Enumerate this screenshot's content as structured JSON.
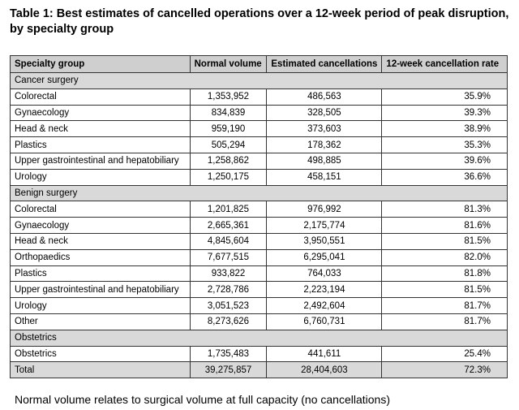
{
  "title": "Table 1: Best estimates of cancelled operations over a 12-week period of peak disruption, by specialty group",
  "table": {
    "columns": [
      "Specialty group",
      "Normal volume",
      "Estimated cancellations",
      "12-week cancellation rate"
    ],
    "sections": [
      {
        "title": "Cancer surgery",
        "rows": [
          [
            "Colorectal",
            "1,353,952",
            "486,563",
            "35.9%"
          ],
          [
            "Gynaecology",
            "834,839",
            "328,505",
            "39.3%"
          ],
          [
            "Head & neck",
            "959,190",
            "373,603",
            "38.9%"
          ],
          [
            "Plastics",
            "505,294",
            "178,362",
            "35.3%"
          ],
          [
            "Upper gastrointestinal and hepatobiliary",
            "1,258,862",
            "498,885",
            "39.6%"
          ],
          [
            "Urology",
            "1,250,175",
            "458,151",
            "36.6%"
          ]
        ]
      },
      {
        "title": "Benign surgery",
        "rows": [
          [
            "Colorectal",
            "1,201,825",
            "976,992",
            "81.3%"
          ],
          [
            "Gynaecology",
            "2,665,361",
            "2,175,774",
            "81.6%"
          ],
          [
            "Head & neck",
            "4,845,604",
            "3,950,551",
            "81.5%"
          ],
          [
            "Orthopaedics",
            "7,677,515",
            "6,295,041",
            "82.0%"
          ],
          [
            "Plastics",
            "933,822",
            "764,033",
            "81.8%"
          ],
          [
            "Upper gastrointestinal and hepatobiliary",
            "2,728,786",
            "2,223,194",
            "81.5%"
          ],
          [
            "Urology",
            "3,051,523",
            "2,492,604",
            "81.7%"
          ],
          [
            "Other",
            "8,273,626",
            "6,760,731",
            "81.7%"
          ]
        ]
      },
      {
        "title": "Obstetrics",
        "rows": [
          [
            "Obstetrics",
            "1,735,483",
            "441,611",
            "25.4%"
          ]
        ]
      }
    ],
    "total": [
      "Total",
      "39,275,857",
      "28,404,603",
      "72.3%"
    ]
  },
  "footnote": "Normal volume relates to surgical volume at full capacity (no cancellations)"
}
